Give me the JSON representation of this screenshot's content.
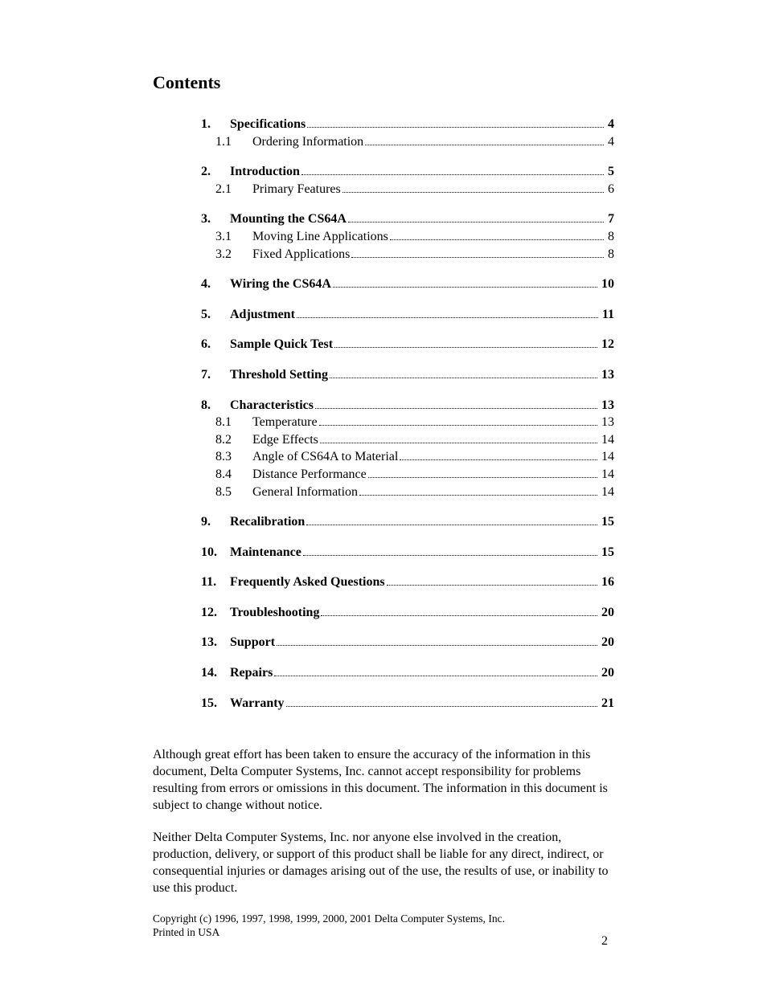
{
  "title": "Contents",
  "toc": [
    {
      "type": "main",
      "num": "1.",
      "label": "Specifications",
      "page": "4"
    },
    {
      "type": "sub",
      "num": "1.1",
      "label": "Ordering Information",
      "page": "4"
    },
    {
      "type": "main",
      "num": "2.",
      "label": "Introduction",
      "page": "5"
    },
    {
      "type": "sub",
      "num": "2.1",
      "label": "Primary Features",
      "page": "6"
    },
    {
      "type": "main",
      "num": "3.",
      "label": "Mounting the CS64A",
      "page": "7"
    },
    {
      "type": "sub",
      "num": "3.1",
      "label": "Moving Line Applications",
      "page": "8"
    },
    {
      "type": "sub",
      "num": "3.2",
      "label": "Fixed Applications",
      "page": "8"
    },
    {
      "type": "main",
      "num": "4.",
      "label": "Wiring the CS64A",
      "page": "10"
    },
    {
      "type": "main",
      "num": "5.",
      "label": "Adjustment",
      "page": "11"
    },
    {
      "type": "main",
      "num": "6.",
      "label": "Sample Quick Test",
      "page": "12"
    },
    {
      "type": "main",
      "num": "7.",
      "label": "Threshold Setting",
      "page": "13"
    },
    {
      "type": "main",
      "num": "8.",
      "label": "Characteristics",
      "page": "13"
    },
    {
      "type": "sub",
      "num": "8.1",
      "label": "Temperature",
      "page": "13"
    },
    {
      "type": "sub",
      "num": "8.2",
      "label": "Edge Effects",
      "page": "14"
    },
    {
      "type": "sub",
      "num": "8.3",
      "label": "Angle of CS64A to Material",
      "page": "14"
    },
    {
      "type": "sub",
      "num": "8.4",
      "label": "Distance Performance",
      "page": "14"
    },
    {
      "type": "sub",
      "num": "8.5",
      "label": "General Information",
      "page": "14"
    },
    {
      "type": "main",
      "num": "9.",
      "label": "Recalibration",
      "page": "15"
    },
    {
      "type": "main",
      "num": "10.",
      "label": "Maintenance",
      "page": "15"
    },
    {
      "type": "main",
      "num": "11.",
      "label": "Frequently Asked Questions",
      "page": "16"
    },
    {
      "type": "main",
      "num": "12.",
      "label": "Troubleshooting",
      "page": "20"
    },
    {
      "type": "main",
      "num": "13.",
      "label": "Support",
      "page": "20"
    },
    {
      "type": "main",
      "num": "14.",
      "label": "Repairs",
      "page": "20"
    },
    {
      "type": "main",
      "num": "15.",
      "label": "Warranty",
      "page": "21"
    }
  ],
  "disclaimer1": "Although great effort has been taken to ensure the accuracy of the information in this document, Delta Computer Systems, Inc. cannot accept responsibility for problems resulting from errors or omissions in this document.  The information in this document is subject to change without notice.",
  "disclaimer2": "Neither Delta Computer Systems, Inc. nor anyone else involved in the creation, production, delivery, or support of this product shall be liable for any direct, indirect, or consequential injuries or damages arising out of the use, the results of use, or inability to use this product.",
  "copyright_line1": "Copyright (c) 1996, 1997, 1998, 1999, 2000, 2001 Delta Computer Systems, Inc.",
  "copyright_line2": "Printed in USA",
  "page_number": "2"
}
